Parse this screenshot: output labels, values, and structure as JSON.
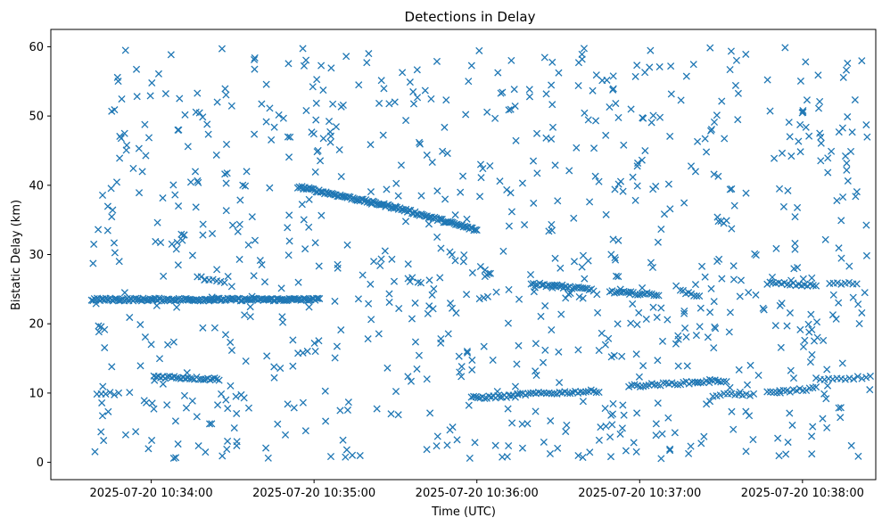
{
  "chart_data": {
    "type": "scatter",
    "title": "Detections in Delay",
    "xlabel": "Time (UTC)",
    "ylabel": "Bistatic Delay (km)",
    "x_axis": "time",
    "xlim": [
      "2025-07-20 10:33:23",
      "2025-07-20 10:38:27"
    ],
    "ylim": [
      -2.5,
      62.5
    ],
    "x_ticks": [
      "2025-07-20 10:34:00",
      "2025-07-20 10:35:00",
      "2025-07-20 10:36:00",
      "2025-07-20 10:37:00",
      "2025-07-20 10:38:00"
    ],
    "x_tick_labels": [
      "2025-07-20 10:34:00",
      "2025-07-20 10:35:00",
      "2025-07-20 10:36:00",
      "2025-07-20 10:37:00",
      "2025-07-20 10:38:00"
    ],
    "y_ticks": [
      0,
      10,
      20,
      30,
      40,
      50,
      60
    ],
    "y_tick_labels": [
      "0",
      "10",
      "20",
      "30",
      "40",
      "50",
      "60"
    ],
    "marker": "x",
    "color": "#1f77b4",
    "grid": false,
    "series": [
      {
        "tracks": [
          {
            "start": "2025-07-20 10:33:38",
            "end": "2025-07-20 10:35:02",
            "y_start": 23.5,
            "y_end": 23.5,
            "count": 160
          },
          {
            "start": "2025-07-20 10:34:54",
            "end": "2025-07-20 10:35:30",
            "y_start": 39.8,
            "y_end": 36.8,
            "count": 70
          },
          {
            "start": "2025-07-20 10:35:30",
            "end": "2025-07-20 10:36:00",
            "y_start": 36.8,
            "y_end": 33.5,
            "count": 55
          },
          {
            "start": "2025-07-20 10:34:01",
            "end": "2025-07-20 10:34:25",
            "y_start": 12.4,
            "y_end": 12.0,
            "count": 30
          },
          {
            "start": "2025-07-20 10:33:40",
            "end": "2025-07-20 10:33:48",
            "y_start": 10.0,
            "y_end": 9.9,
            "count": 6
          },
          {
            "start": "2025-07-20 10:34:17",
            "end": "2025-07-20 10:34:27",
            "y_start": 26.8,
            "y_end": 26.0,
            "count": 8
          },
          {
            "start": "2025-07-20 10:35:58",
            "end": "2025-07-20 10:36:15",
            "y_start": 9.3,
            "y_end": 9.6,
            "count": 22
          },
          {
            "start": "2025-07-20 10:36:15",
            "end": "2025-07-20 10:36:45",
            "y_start": 9.8,
            "y_end": 10.3,
            "count": 32
          },
          {
            "start": "2025-07-20 10:36:20",
            "end": "2025-07-20 10:36:43",
            "y_start": 25.8,
            "y_end": 24.9,
            "count": 30
          },
          {
            "start": "2025-07-20 10:36:49",
            "end": "2025-07-20 10:37:07",
            "y_start": 24.6,
            "y_end": 24.2,
            "count": 22
          },
          {
            "start": "2025-07-20 10:36:56",
            "end": "2025-07-20 10:37:32",
            "y_start": 11.0,
            "y_end": 11.8,
            "count": 35
          },
          {
            "start": "2025-07-20 10:37:15",
            "end": "2025-07-20 10:37:22",
            "y_start": 24.8,
            "y_end": 23.8,
            "count": 8
          },
          {
            "start": "2025-07-20 10:37:27",
            "end": "2025-07-20 10:37:42",
            "y_start": 9.7,
            "y_end": 9.8,
            "count": 12
          },
          {
            "start": "2025-07-20 10:37:47",
            "end": "2025-07-20 10:38:05",
            "y_start": 10.0,
            "y_end": 10.7,
            "count": 16
          },
          {
            "start": "2025-07-20 10:37:47",
            "end": "2025-07-20 10:38:05",
            "y_start": 25.9,
            "y_end": 25.5,
            "count": 18
          },
          {
            "start": "2025-07-20 10:38:10",
            "end": "2025-07-20 10:38:20",
            "y_start": 25.8,
            "y_end": 25.8,
            "count": 8
          },
          {
            "start": "2025-07-20 10:38:05",
            "end": "2025-07-20 10:38:25",
            "y_start": 12.0,
            "y_end": 12.3,
            "count": 14
          },
          {
            "start": "2025-07-20 10:36:03",
            "end": "2025-07-20 10:36:05",
            "y_start": 27.0,
            "y_end": 27.3,
            "count": 4
          },
          {
            "start": "2025-07-20 10:36:01",
            "end": "2025-07-20 10:36:04",
            "y_start": 23.5,
            "y_end": 23.8,
            "count": 3
          },
          {
            "start": "2025-07-20 10:37:29",
            "end": "2025-07-20 10:37:32",
            "y_start": 34.7,
            "y_end": 34.7,
            "count": 4
          }
        ],
        "scattered": {
          "start": "2025-07-20 10:33:38",
          "end": "2025-07-20 10:38:25",
          "y_min": 0.5,
          "y_max": 60,
          "count": 850
        }
      }
    ]
  }
}
